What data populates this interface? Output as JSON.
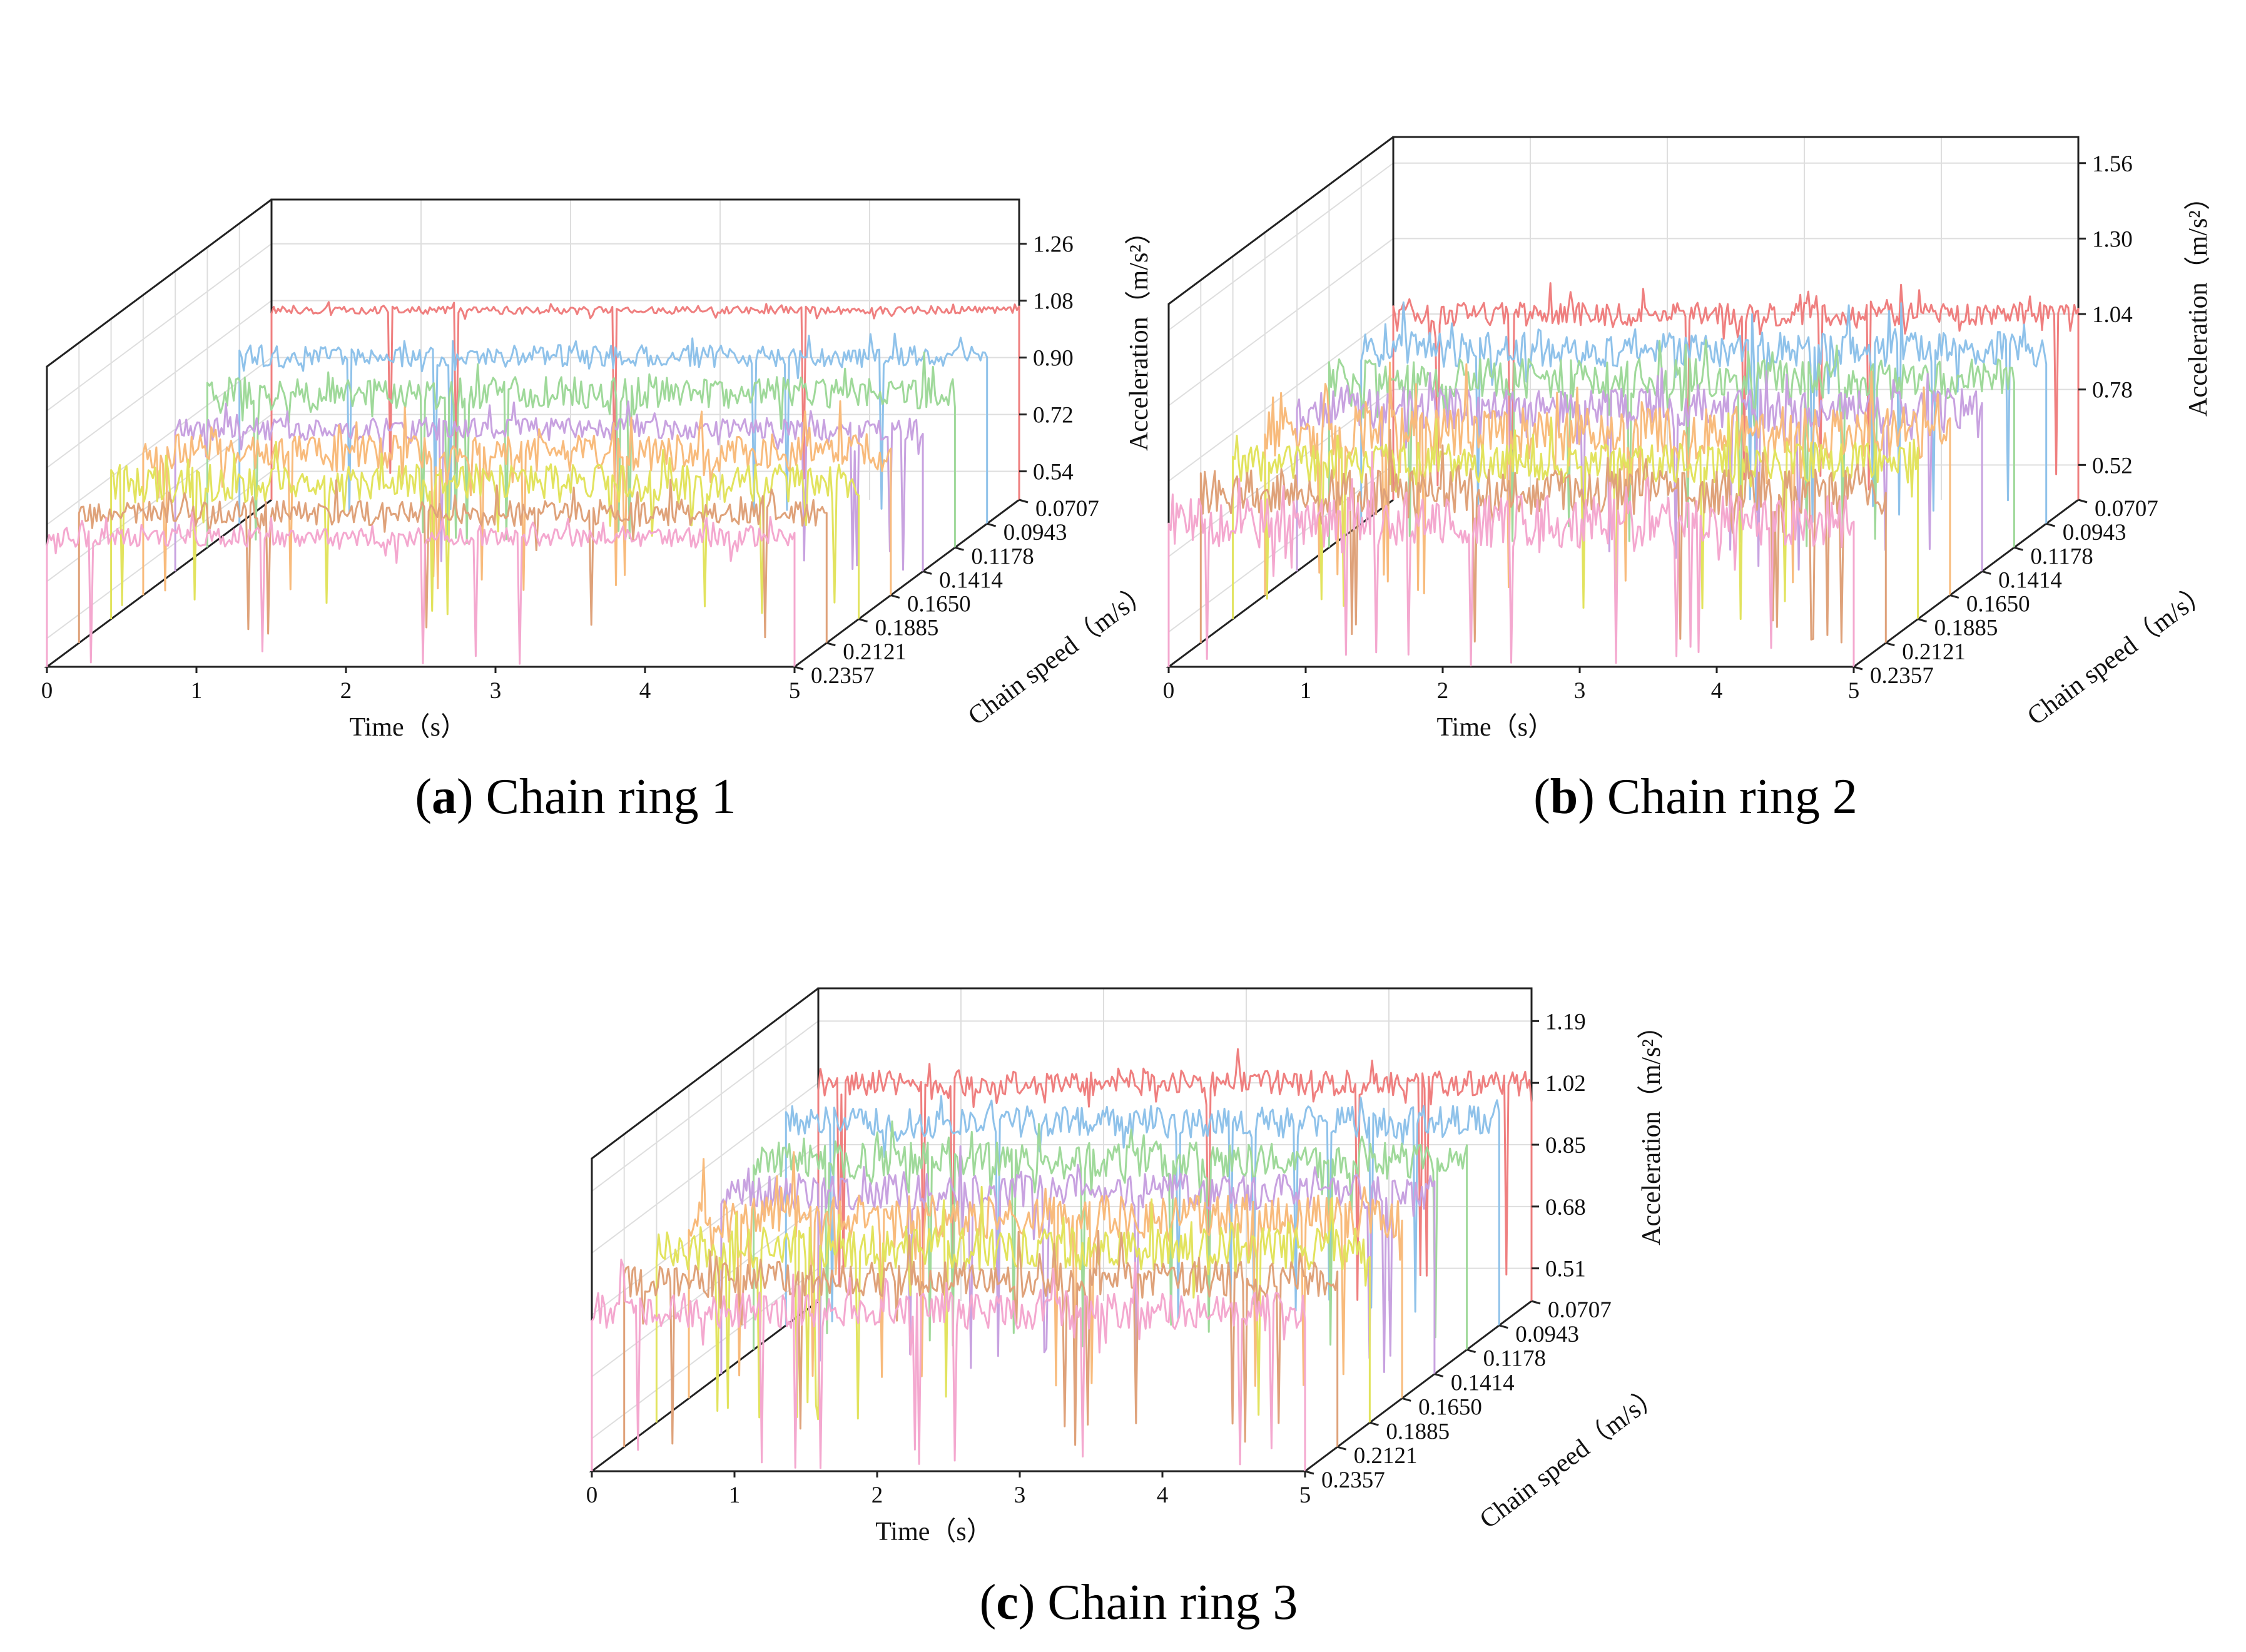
{
  "figure": {
    "panels": [
      {
        "id": "a",
        "caption_letter": "a",
        "caption_text": "Chain ring 1",
        "chart_data": {
          "type": "line",
          "title": "Chain ring 1",
          "xlabel": "Time（s）",
          "ylabel": "Acceleration（m/s²）",
          "zlabel": "Chain speed（m/s）",
          "x_ticks": [
            "0",
            "1",
            "2",
            "3",
            "4",
            "5"
          ],
          "xlim": [
            0,
            5
          ],
          "z_ticks": [
            "0.54",
            "0.72",
            "0.90",
            "1.08",
            "1.26"
          ],
          "z_values": [
            0.54,
            0.72,
            0.9,
            1.08,
            1.26
          ],
          "zlim": [
            0.45,
            1.4
          ],
          "series": [
            {
              "name": "0.0707",
              "baseline": 1.05,
              "noise": 0.012,
              "spikes": 4
            },
            {
              "name": "0.0943",
              "baseline": 0.98,
              "noise": 0.035,
              "spikes": 6
            },
            {
              "name": "0.1178",
              "baseline": 0.94,
              "noise": 0.05,
              "spikes": 8
            },
            {
              "name": "0.1414",
              "baseline": 0.9,
              "noise": 0.035,
              "spikes": 6
            },
            {
              "name": "0.1650",
              "baseline": 0.9,
              "noise": 0.06,
              "spikes": 8
            },
            {
              "name": "0.1885",
              "baseline": 0.88,
              "noise": 0.06,
              "spikes": 8
            },
            {
              "name": "0.2121",
              "baseline": 0.86,
              "noise": 0.04,
              "spikes": 5
            },
            {
              "name": "0.2357",
              "baseline": 0.86,
              "noise": 0.03,
              "spikes": 5
            }
          ]
        }
      },
      {
        "id": "b",
        "caption_letter": "b",
        "caption_text": "Chain ring 2",
        "chart_data": {
          "type": "line",
          "title": "Chain ring 2",
          "xlabel": "Time（s）",
          "ylabel": "Acceleration（m/s²）",
          "zlabel": "Chain speed（m/s）",
          "x_ticks": [
            "0",
            "1",
            "2",
            "3",
            "4",
            "5"
          ],
          "xlim": [
            0,
            5
          ],
          "z_ticks": [
            "0.52",
            "0.78",
            "1.04",
            "1.30",
            "1.56"
          ],
          "z_values": [
            0.52,
            0.78,
            1.04,
            1.3,
            1.56
          ],
          "zlim": [
            0.4,
            1.65
          ],
          "series": [
            {
              "name": "0.0707",
              "baseline": 1.04,
              "noise": 0.04,
              "spikes": 8
            },
            {
              "name": "0.0943",
              "baseline": 1.0,
              "noise": 0.06,
              "spikes": 8
            },
            {
              "name": "0.1178",
              "baseline": 0.98,
              "noise": 0.07,
              "spikes": 9
            },
            {
              "name": "0.1414",
              "baseline": 0.96,
              "noise": 0.07,
              "spikes": 9
            },
            {
              "name": "0.1650",
              "baseline": 0.96,
              "noise": 0.09,
              "spikes": 10
            },
            {
              "name": "0.1885",
              "baseline": 0.94,
              "noise": 0.07,
              "spikes": 9
            },
            {
              "name": "0.2121",
              "baseline": 0.92,
              "noise": 0.08,
              "spikes": 10
            },
            {
              "name": "0.2357",
              "baseline": 0.9,
              "noise": 0.09,
              "spikes": 12
            }
          ]
        }
      },
      {
        "id": "c",
        "caption_letter": "c",
        "caption_text": "Chain ring 3",
        "chart_data": {
          "type": "line",
          "title": "Chain ring 3",
          "xlabel": "Time（s）",
          "ylabel": "Acceleration（m/s²）",
          "zlabel": "Chain speed（m/s）",
          "x_ticks": [
            "0",
            "1",
            "2",
            "3",
            "4",
            "5"
          ],
          "xlim": [
            0,
            5
          ],
          "z_ticks": [
            "0.51",
            "0.68",
            "0.85",
            "1.02",
            "1.19"
          ],
          "z_values": [
            0.51,
            0.68,
            0.85,
            1.02,
            1.19
          ],
          "zlim": [
            0.42,
            1.28
          ],
          "series": [
            {
              "name": "0.0707",
              "baseline": 1.02,
              "noise": 0.035,
              "spikes": 9
            },
            {
              "name": "0.0943",
              "baseline": 0.98,
              "noise": 0.045,
              "spikes": 9
            },
            {
              "name": "0.1178",
              "baseline": 0.94,
              "noise": 0.05,
              "spikes": 9
            },
            {
              "name": "0.1414",
              "baseline": 0.92,
              "noise": 0.05,
              "spikes": 10
            },
            {
              "name": "0.1650",
              "baseline": 0.92,
              "noise": 0.06,
              "spikes": 10
            },
            {
              "name": "0.1885",
              "baseline": 0.9,
              "noise": 0.06,
              "spikes": 10
            },
            {
              "name": "0.2121",
              "baseline": 0.88,
              "noise": 0.05,
              "spikes": 9
            },
            {
              "name": "0.2357",
              "baseline": 0.86,
              "noise": 0.05,
              "spikes": 10
            }
          ]
        }
      }
    ],
    "series_colors": [
      "#ef7f7f",
      "#8fc2ea",
      "#9fd99a",
      "#c8a2e0",
      "#f8bb7c",
      "#e2e35e",
      "#dfa27a",
      "#f4a8cf"
    ]
  }
}
